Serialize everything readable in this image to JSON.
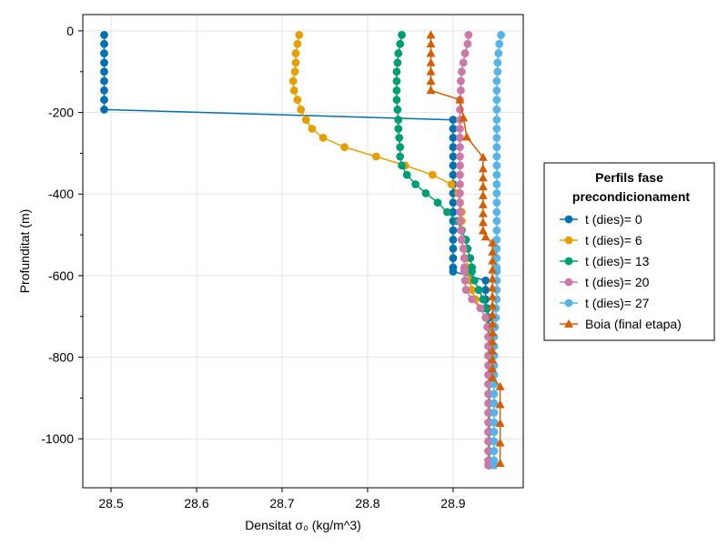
{
  "chart_data": {
    "type": "line",
    "xlabel": "Densitat σ₀ (kg/m^3)",
    "ylabel": "Profunditat (m)",
    "xlim": [
      28.467,
      28.982
    ],
    "ylim": [
      -1120,
      40
    ],
    "xticks": [
      28.5,
      28.6,
      28.7,
      28.8,
      28.9
    ],
    "xtick_labels": [
      "28.5",
      "28.6",
      "28.7",
      "28.8",
      "28.9"
    ],
    "yticks": [
      0,
      -200,
      -400,
      -600,
      -800,
      -1000
    ],
    "ytick_labels": [
      "0",
      "-200",
      "-400",
      "-600",
      "-800",
      "-1000"
    ],
    "minor_yticks": [
      -100,
      -300,
      -500,
      -700,
      -900
    ],
    "grid": true,
    "legend": {
      "title_lines": [
        "Perfils fase",
        "precondicionament"
      ],
      "placement": "right"
    },
    "series": [
      {
        "name": "t (dies)= 0",
        "color": "#0072b2",
        "marker": "circle",
        "points": [
          [
            28.492,
            -10
          ],
          [
            28.492,
            -32
          ],
          [
            28.492,
            -55
          ],
          [
            28.492,
            -78
          ],
          [
            28.492,
            -100
          ],
          [
            28.492,
            -123
          ],
          [
            28.492,
            -146
          ],
          [
            28.492,
            -169
          ],
          [
            28.492,
            -193
          ],
          [
            28.9,
            -218
          ],
          [
            28.9,
            -240
          ],
          [
            28.9,
            -262
          ],
          [
            28.9,
            -285
          ],
          [
            28.9,
            -308
          ],
          [
            28.9,
            -330
          ],
          [
            28.9,
            -353
          ],
          [
            28.9,
            -376
          ],
          [
            28.9,
            -398
          ],
          [
            28.9,
            -421
          ],
          [
            28.9,
            -444
          ],
          [
            28.9,
            -466
          ],
          [
            28.9,
            -489
          ],
          [
            28.9,
            -512
          ],
          [
            28.9,
            -534
          ],
          [
            28.9,
            -557
          ],
          [
            28.9,
            -580
          ],
          [
            28.9,
            -590
          ],
          [
            28.938,
            -612
          ],
          [
            28.938,
            -635
          ],
          [
            28.938,
            -658
          ],
          [
            28.94,
            -680
          ],
          [
            28.942,
            -703
          ],
          [
            28.942,
            -726
          ],
          [
            28.942,
            -750
          ],
          [
            28.942,
            -773
          ],
          [
            28.942,
            -796
          ],
          [
            28.942,
            -820
          ],
          [
            28.942,
            -843
          ],
          [
            28.942,
            -866
          ],
          [
            28.942,
            -890
          ],
          [
            28.942,
            -913
          ],
          [
            28.942,
            -936
          ],
          [
            28.942,
            -960
          ],
          [
            28.942,
            -983
          ],
          [
            28.942,
            -1006
          ],
          [
            28.942,
            -1030
          ],
          [
            28.942,
            -1053
          ],
          [
            28.942,
            -1065
          ]
        ]
      },
      {
        "name": "t (dies)= 6",
        "color": "#e69f00",
        "marker": "circle",
        "points": [
          [
            28.72,
            -10
          ],
          [
            28.718,
            -32
          ],
          [
            28.716,
            -55
          ],
          [
            28.716,
            -78
          ],
          [
            28.715,
            -100
          ],
          [
            28.713,
            -123
          ],
          [
            28.714,
            -146
          ],
          [
            28.718,
            -169
          ],
          [
            28.722,
            -193
          ],
          [
            28.728,
            -218
          ],
          [
            28.735,
            -240
          ],
          [
            28.748,
            -262
          ],
          [
            28.773,
            -285
          ],
          [
            28.81,
            -308
          ],
          [
            28.844,
            -330
          ],
          [
            28.876,
            -353
          ],
          [
            28.898,
            -376
          ],
          [
            28.906,
            -398
          ],
          [
            28.908,
            -421
          ],
          [
            28.91,
            -444
          ],
          [
            28.91,
            -466
          ],
          [
            28.91,
            -489
          ],
          [
            28.91,
            -512
          ],
          [
            28.912,
            -534
          ],
          [
            28.915,
            -557
          ],
          [
            28.917,
            -580
          ],
          [
            28.918,
            -590
          ],
          [
            28.92,
            -612
          ],
          [
            28.922,
            -635
          ],
          [
            28.926,
            -658
          ],
          [
            28.932,
            -680
          ],
          [
            28.938,
            -703
          ],
          [
            28.942,
            -726
          ],
          [
            28.942,
            -750
          ],
          [
            28.942,
            -773
          ],
          [
            28.942,
            -796
          ],
          [
            28.942,
            -820
          ],
          [
            28.942,
            -843
          ],
          [
            28.942,
            -866
          ],
          [
            28.942,
            -890
          ],
          [
            28.942,
            -913
          ],
          [
            28.942,
            -936
          ],
          [
            28.942,
            -960
          ],
          [
            28.942,
            -983
          ],
          [
            28.942,
            -1006
          ],
          [
            28.942,
            -1030
          ],
          [
            28.942,
            -1053
          ],
          [
            28.942,
            -1065
          ]
        ]
      },
      {
        "name": "t (dies)= 13",
        "color": "#009e73",
        "marker": "circle",
        "points": [
          [
            28.84,
            -10
          ],
          [
            28.838,
            -32
          ],
          [
            28.836,
            -55
          ],
          [
            28.835,
            -78
          ],
          [
            28.834,
            -100
          ],
          [
            28.834,
            -123
          ],
          [
            28.834,
            -146
          ],
          [
            28.834,
            -169
          ],
          [
            28.835,
            -193
          ],
          [
            28.836,
            -218
          ],
          [
            28.836,
            -240
          ],
          [
            28.837,
            -262
          ],
          [
            28.838,
            -285
          ],
          [
            28.838,
            -308
          ],
          [
            28.84,
            -330
          ],
          [
            28.846,
            -353
          ],
          [
            28.856,
            -376
          ],
          [
            28.868,
            -398
          ],
          [
            28.882,
            -421
          ],
          [
            28.893,
            -444
          ],
          [
            28.905,
            -466
          ],
          [
            28.91,
            -489
          ],
          [
            28.915,
            -512
          ],
          [
            28.917,
            -534
          ],
          [
            28.92,
            -557
          ],
          [
            28.922,
            -580
          ],
          [
            28.922,
            -590
          ],
          [
            28.925,
            -612
          ],
          [
            28.93,
            -635
          ],
          [
            28.935,
            -658
          ],
          [
            28.938,
            -680
          ],
          [
            28.94,
            -703
          ],
          [
            28.941,
            -726
          ],
          [
            28.942,
            -750
          ],
          [
            28.942,
            -773
          ],
          [
            28.942,
            -796
          ],
          [
            28.942,
            -820
          ],
          [
            28.942,
            -843
          ],
          [
            28.942,
            -866
          ],
          [
            28.942,
            -890
          ],
          [
            28.942,
            -913
          ],
          [
            28.942,
            -936
          ],
          [
            28.942,
            -960
          ],
          [
            28.942,
            -983
          ],
          [
            28.942,
            -1006
          ],
          [
            28.942,
            -1030
          ],
          [
            28.942,
            -1053
          ],
          [
            28.942,
            -1065
          ]
        ]
      },
      {
        "name": "t (dies)= 20",
        "color": "#cc79a7",
        "marker": "circle",
        "points": [
          [
            28.918,
            -10
          ],
          [
            28.917,
            -32
          ],
          [
            28.914,
            -55
          ],
          [
            28.912,
            -78
          ],
          [
            28.91,
            -100
          ],
          [
            28.909,
            -123
          ],
          [
            28.909,
            -146
          ],
          [
            28.908,
            -169
          ],
          [
            28.908,
            -193
          ],
          [
            28.908,
            -218
          ],
          [
            28.908,
            -240
          ],
          [
            28.908,
            -262
          ],
          [
            28.908,
            -285
          ],
          [
            28.908,
            -308
          ],
          [
            28.908,
            -330
          ],
          [
            28.908,
            -353
          ],
          [
            28.908,
            -376
          ],
          [
            28.908,
            -398
          ],
          [
            28.908,
            -421
          ],
          [
            28.908,
            -444
          ],
          [
            28.908,
            -466
          ],
          [
            28.909,
            -489
          ],
          [
            28.91,
            -512
          ],
          [
            28.912,
            -534
          ],
          [
            28.913,
            -557
          ],
          [
            28.913,
            -580
          ],
          [
            28.913,
            -590
          ],
          [
            28.914,
            -612
          ],
          [
            28.915,
            -635
          ],
          [
            28.922,
            -658
          ],
          [
            28.932,
            -680
          ],
          [
            28.938,
            -703
          ],
          [
            28.94,
            -726
          ],
          [
            28.941,
            -750
          ],
          [
            28.941,
            -773
          ],
          [
            28.941,
            -796
          ],
          [
            28.941,
            -820
          ],
          [
            28.941,
            -843
          ],
          [
            28.941,
            -866
          ],
          [
            28.941,
            -890
          ],
          [
            28.941,
            -913
          ],
          [
            28.941,
            -936
          ],
          [
            28.941,
            -960
          ],
          [
            28.941,
            -983
          ],
          [
            28.941,
            -1006
          ],
          [
            28.941,
            -1030
          ],
          [
            28.941,
            -1053
          ],
          [
            28.941,
            -1065
          ]
        ]
      },
      {
        "name": "t (dies)= 27",
        "color": "#56b4e9",
        "marker": "circle",
        "points": [
          [
            28.956,
            -10
          ],
          [
            28.954,
            -32
          ],
          [
            28.953,
            -55
          ],
          [
            28.952,
            -78
          ],
          [
            28.952,
            -100
          ],
          [
            28.951,
            -123
          ],
          [
            28.951,
            -146
          ],
          [
            28.951,
            -169
          ],
          [
            28.951,
            -193
          ],
          [
            28.951,
            -218
          ],
          [
            28.951,
            -240
          ],
          [
            28.951,
            -262
          ],
          [
            28.951,
            -285
          ],
          [
            28.951,
            -308
          ],
          [
            28.951,
            -330
          ],
          [
            28.951,
            -353
          ],
          [
            28.951,
            -376
          ],
          [
            28.951,
            -398
          ],
          [
            28.951,
            -421
          ],
          [
            28.951,
            -444
          ],
          [
            28.951,
            -466
          ],
          [
            28.951,
            -489
          ],
          [
            28.951,
            -512
          ],
          [
            28.951,
            -534
          ],
          [
            28.951,
            -557
          ],
          [
            28.951,
            -580
          ],
          [
            28.951,
            -590
          ],
          [
            28.951,
            -612
          ],
          [
            28.951,
            -635
          ],
          [
            28.951,
            -658
          ],
          [
            28.95,
            -680
          ],
          [
            28.95,
            -703
          ],
          [
            28.949,
            -726
          ],
          [
            28.948,
            -750
          ],
          [
            28.948,
            -773
          ],
          [
            28.948,
            -796
          ],
          [
            28.948,
            -820
          ],
          [
            28.948,
            -843
          ],
          [
            28.948,
            -866
          ],
          [
            28.948,
            -890
          ],
          [
            28.948,
            -913
          ],
          [
            28.948,
            -936
          ],
          [
            28.948,
            -960
          ],
          [
            28.948,
            -983
          ],
          [
            28.948,
            -1006
          ],
          [
            28.948,
            -1030
          ],
          [
            28.948,
            -1053
          ],
          [
            28.948,
            -1065
          ]
        ]
      },
      {
        "name": "Boia (final etapa)",
        "color": "#d55e00",
        "marker": "triangle",
        "points": [
          [
            28.874,
            -10
          ],
          [
            28.874,
            -32
          ],
          [
            28.874,
            -55
          ],
          [
            28.874,
            -78
          ],
          [
            28.874,
            -100
          ],
          [
            28.874,
            -123
          ],
          [
            28.874,
            -146
          ],
          [
            28.908,
            -169
          ],
          [
            28.912,
            -213
          ],
          [
            28.916,
            -260
          ],
          [
            28.935,
            -310
          ],
          [
            28.935,
            -338
          ],
          [
            28.935,
            -360
          ],
          [
            28.935,
            -382
          ],
          [
            28.935,
            -404
          ],
          [
            28.935,
            -426
          ],
          [
            28.935,
            -448
          ],
          [
            28.935,
            -470
          ],
          [
            28.935,
            -490
          ],
          [
            28.938,
            -505
          ],
          [
            28.946,
            -520
          ],
          [
            28.946,
            -542
          ],
          [
            28.946,
            -564
          ],
          [
            28.946,
            -586
          ],
          [
            28.946,
            -608
          ],
          [
            28.946,
            -630
          ],
          [
            28.946,
            -652
          ],
          [
            28.946,
            -674
          ],
          [
            28.946,
            -696
          ],
          [
            28.946,
            -718
          ],
          [
            28.946,
            -740
          ],
          [
            28.946,
            -762
          ],
          [
            28.946,
            -784
          ],
          [
            28.946,
            -806
          ],
          [
            28.946,
            -828
          ],
          [
            28.946,
            -850
          ],
          [
            28.955,
            -872
          ],
          [
            28.955,
            -916
          ],
          [
            28.955,
            -962
          ],
          [
            28.955,
            -1010
          ],
          [
            28.955,
            -1060
          ]
        ]
      }
    ]
  }
}
